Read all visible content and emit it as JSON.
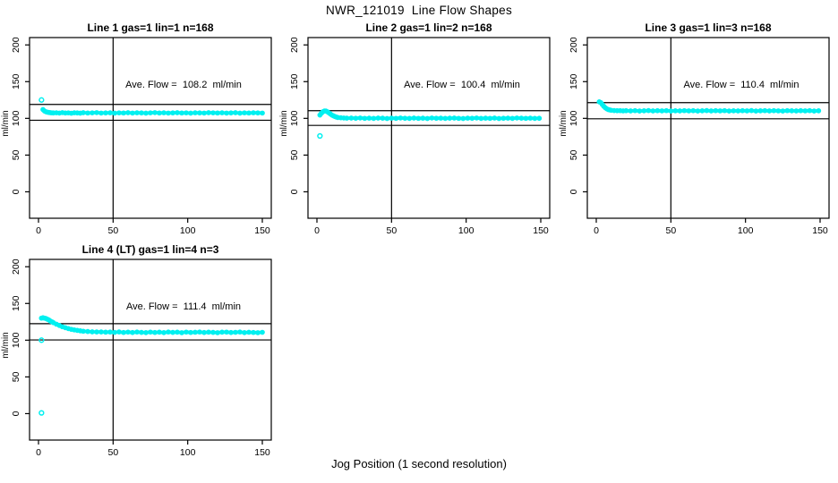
{
  "title": "NWR_121019  Line Flow Shapes",
  "xlabel": "Jog Position (1 second resolution)",
  "point_color": "#00F0F0",
  "axis_color": "#000000",
  "chart_data": [
    {
      "id": "line1",
      "type": "scatter",
      "title": "Line 1 gas=1 lin=1 n=168",
      "annotation": "Ave. Flow =  108.2  ml/min",
      "ave_flow_ml_min": 108.2,
      "ylabel": "ml/min",
      "xlim": [
        -6,
        156
      ],
      "ylim": [
        -36,
        210
      ],
      "x_ticks": [
        0,
        50,
        100,
        150
      ],
      "y_ticks": [
        0,
        50,
        100,
        150,
        200
      ],
      "vline_x": 50,
      "hlines": [
        119.0,
        97.4
      ],
      "points": [
        [
          3,
          112
        ],
        [
          4,
          110
        ],
        [
          5,
          109
        ],
        [
          6,
          108.4
        ],
        [
          7,
          108
        ],
        [
          8,
          107.7
        ],
        [
          9,
          107.5
        ],
        [
          10,
          107.4
        ],
        [
          12,
          107.6
        ],
        [
          14,
          107.2
        ],
        [
          16,
          107.8
        ],
        [
          18,
          107.3
        ],
        [
          20,
          107.5
        ],
        [
          22,
          107
        ],
        [
          24,
          107.6
        ],
        [
          26,
          107.4
        ],
        [
          28,
          107.1
        ],
        [
          30,
          107.7
        ],
        [
          33,
          107.3
        ],
        [
          36,
          107.5
        ],
        [
          39,
          107.8
        ],
        [
          42,
          107.2
        ],
        [
          45,
          107.4
        ],
        [
          48,
          107.6
        ],
        [
          51,
          107.1
        ],
        [
          54,
          107.5
        ],
        [
          57,
          107.3
        ],
        [
          60,
          107.7
        ],
        [
          63,
          107.2
        ],
        [
          66,
          107.6
        ],
        [
          69,
          107.4
        ],
        [
          72,
          107.1
        ],
        [
          75,
          107.5
        ],
        [
          78,
          107.8
        ],
        [
          81,
          107.3
        ],
        [
          84,
          107.6
        ],
        [
          87,
          107.2
        ],
        [
          90,
          107.4
        ],
        [
          93,
          107.7
        ],
        [
          96,
          107.3
        ],
        [
          99,
          107.5
        ],
        [
          102,
          107.1
        ],
        [
          105,
          107.6
        ],
        [
          108,
          107.4
        ],
        [
          111,
          107.2
        ],
        [
          114,
          107.7
        ],
        [
          117,
          107.5
        ],
        [
          120,
          107.3
        ],
        [
          123,
          107.6
        ],
        [
          126,
          107.2
        ],
        [
          129,
          107.4
        ],
        [
          132,
          107.7
        ],
        [
          135,
          107.1
        ],
        [
          138,
          107.5
        ],
        [
          141,
          107.3
        ],
        [
          144,
          107.6
        ],
        [
          147,
          107.4
        ],
        [
          150,
          107.2
        ]
      ],
      "outliers": [
        [
          2,
          125
        ]
      ]
    },
    {
      "id": "line2",
      "type": "scatter",
      "title": "Line 2 gas=1 lin=2 n=168",
      "annotation": "Ave. Flow =  100.4  ml/min",
      "ave_flow_ml_min": 100.4,
      "ylabel": "ml/min",
      "xlim": [
        -6,
        156
      ],
      "ylim": [
        -36,
        210
      ],
      "x_ticks": [
        0,
        50,
        100,
        150
      ],
      "y_ticks": [
        0,
        50,
        100,
        150,
        200
      ],
      "vline_x": 50,
      "hlines": [
        110.4,
        90.4
      ],
      "points": [
        [
          2,
          104.5
        ],
        [
          3,
          107
        ],
        [
          4,
          109
        ],
        [
          5,
          110
        ],
        [
          6,
          110
        ],
        [
          7,
          109
        ],
        [
          8,
          107.5
        ],
        [
          9,
          106
        ],
        [
          10,
          104.5
        ],
        [
          11,
          103.5
        ],
        [
          12,
          102.5
        ],
        [
          13,
          101.8
        ],
        [
          14,
          101.2
        ],
        [
          16,
          100.8
        ],
        [
          18,
          100.5
        ],
        [
          20,
          100.3
        ],
        [
          23,
          100.4
        ],
        [
          26,
          100.1
        ],
        [
          29,
          100.5
        ],
        [
          32,
          100
        ],
        [
          35,
          100.3
        ],
        [
          38,
          99.9
        ],
        [
          41,
          100.4
        ],
        [
          44,
          100.2
        ],
        [
          47,
          99.8
        ],
        [
          50,
          100.3
        ],
        [
          53,
          100
        ],
        [
          56,
          100.5
        ],
        [
          59,
          100.1
        ],
        [
          62,
          99.9
        ],
        [
          65,
          100.4
        ],
        [
          68,
          100
        ],
        [
          71,
          100.2
        ],
        [
          74,
          99.8
        ],
        [
          77,
          100.5
        ],
        [
          80,
          100.1
        ],
        [
          83,
          100.3
        ],
        [
          86,
          99.9
        ],
        [
          89,
          100.2
        ],
        [
          92,
          100.4
        ],
        [
          95,
          100
        ],
        [
          98,
          99.8
        ],
        [
          101,
          100.3
        ],
        [
          104,
          100.1
        ],
        [
          107,
          100.5
        ],
        [
          110,
          99.9
        ],
        [
          113,
          100.2
        ],
        [
          116,
          100
        ],
        [
          119,
          100.4
        ],
        [
          122,
          99.8
        ],
        [
          125,
          100.1
        ],
        [
          128,
          100.3
        ],
        [
          131,
          99.9
        ],
        [
          134,
          100.5
        ],
        [
          137,
          100.2
        ],
        [
          140,
          100
        ],
        [
          143,
          100.3
        ],
        [
          146,
          99.9
        ],
        [
          149,
          100.1
        ]
      ],
      "outliers": [
        [
          2,
          76
        ]
      ]
    },
    {
      "id": "line3",
      "type": "scatter",
      "title": "Line 3 gas=1 lin=3 n=168",
      "annotation": "Ave. Flow =  110.4  ml/min",
      "ave_flow_ml_min": 110.4,
      "ylabel": "ml/min",
      "xlim": [
        -6,
        156
      ],
      "ylim": [
        -36,
        210
      ],
      "x_ticks": [
        0,
        50,
        100,
        150
      ],
      "y_ticks": [
        0,
        50,
        100,
        150,
        200
      ],
      "vline_x": 50,
      "hlines": [
        121.4,
        99.4
      ],
      "points": [
        [
          2,
          122.5
        ],
        [
          3,
          121.5
        ],
        [
          4,
          119
        ],
        [
          5,
          116.5
        ],
        [
          6,
          114.5
        ],
        [
          7,
          113
        ],
        [
          8,
          112
        ],
        [
          9,
          111.5
        ],
        [
          10,
          111
        ],
        [
          12,
          110.6
        ],
        [
          14,
          110.4
        ],
        [
          16,
          110.5
        ],
        [
          18,
          110.2
        ],
        [
          20,
          110.4
        ],
        [
          23,
          110.1
        ],
        [
          26,
          110.5
        ],
        [
          29,
          110
        ],
        [
          32,
          110.3
        ],
        [
          35,
          110.6
        ],
        [
          38,
          110.1
        ],
        [
          41,
          110.4
        ],
        [
          44,
          110.2
        ],
        [
          47,
          110.5
        ],
        [
          50,
          110
        ],
        [
          53,
          110.3
        ],
        [
          56,
          110.1
        ],
        [
          59,
          110.5
        ],
        [
          62,
          110.2
        ],
        [
          65,
          110.4
        ],
        [
          68,
          110
        ],
        [
          71,
          110.3
        ],
        [
          74,
          110.6
        ],
        [
          77,
          110.1
        ],
        [
          80,
          110.4
        ],
        [
          83,
          110.2
        ],
        [
          86,
          110.5
        ],
        [
          89,
          110
        ],
        [
          92,
          110.3
        ],
        [
          95,
          110.1
        ],
        [
          98,
          110.4
        ],
        [
          101,
          110.2
        ],
        [
          104,
          110.6
        ],
        [
          107,
          110
        ],
        [
          110,
          110.3
        ],
        [
          113,
          110.5
        ],
        [
          116,
          110.1
        ],
        [
          119,
          110.4
        ],
        [
          122,
          110.2
        ],
        [
          125,
          110
        ],
        [
          128,
          110.5
        ],
        [
          131,
          110.3
        ],
        [
          134,
          110.1
        ],
        [
          137,
          110.4
        ],
        [
          140,
          110.2
        ],
        [
          143,
          110.5
        ],
        [
          146,
          110
        ],
        [
          149,
          110.3
        ]
      ],
      "outliers": []
    },
    {
      "id": "line4",
      "type": "scatter",
      "title": "Line 4 (LT) gas=1 lin=4 n=3",
      "annotation": "Ave. Flow =  111.4  ml/min",
      "ave_flow_ml_min": 111.4,
      "ylabel": "ml/min",
      "xlim": [
        -6,
        156
      ],
      "ylim": [
        -36,
        210
      ],
      "x_ticks": [
        0,
        50,
        100,
        150
      ],
      "y_ticks": [
        0,
        50,
        100,
        150,
        200
      ],
      "vline_x": 50,
      "hlines": [
        122.5,
        100.3
      ],
      "points": [
        [
          2,
          130
        ],
        [
          3,
          130.5
        ],
        [
          4,
          130
        ],
        [
          5,
          129.5
        ],
        [
          6,
          128.5
        ],
        [
          7,
          127.5
        ],
        [
          8,
          126
        ],
        [
          9,
          125
        ],
        [
          10,
          123.8
        ],
        [
          12,
          121.8
        ],
        [
          14,
          120
        ],
        [
          16,
          118.3
        ],
        [
          18,
          117
        ],
        [
          20,
          115.8
        ],
        [
          22,
          114.8
        ],
        [
          24,
          114
        ],
        [
          26,
          113.3
        ],
        [
          28,
          112.7
        ],
        [
          30,
          112.2
        ],
        [
          33,
          111.8
        ],
        [
          36,
          111.4
        ],
        [
          39,
          111.2
        ],
        [
          42,
          111.2
        ],
        [
          45,
          110.9
        ],
        [
          48,
          111.1
        ],
        [
          51,
          110.6
        ],
        [
          54,
          111.2
        ],
        [
          57,
          110.5
        ],
        [
          60,
          111.0
        ],
        [
          63,
          110.4
        ],
        [
          66,
          111.1
        ],
        [
          69,
          110.6
        ],
        [
          72,
          110.3
        ],
        [
          75,
          111.0
        ],
        [
          78,
          110.5
        ],
        [
          81,
          110.9
        ],
        [
          84,
          110.3
        ],
        [
          87,
          111.1
        ],
        [
          90,
          110.6
        ],
        [
          93,
          110.9
        ],
        [
          96,
          110.2
        ],
        [
          99,
          111.0
        ],
        [
          102,
          110.5
        ],
        [
          105,
          110.8
        ],
        [
          108,
          111.1
        ],
        [
          111,
          110.4
        ],
        [
          114,
          110.9
        ],
        [
          117,
          110.6
        ],
        [
          120,
          110.2
        ],
        [
          123,
          110.9
        ],
        [
          126,
          111.0
        ],
        [
          129,
          110.4
        ],
        [
          132,
          110.7
        ],
        [
          135,
          111.1
        ],
        [
          138,
          110.3
        ],
        [
          141,
          110.8
        ],
        [
          144,
          110.5
        ],
        [
          147,
          110.2
        ],
        [
          150,
          110.7
        ]
      ],
      "outliers": [
        [
          2,
          100
        ],
        [
          2,
          1
        ]
      ]
    }
  ]
}
